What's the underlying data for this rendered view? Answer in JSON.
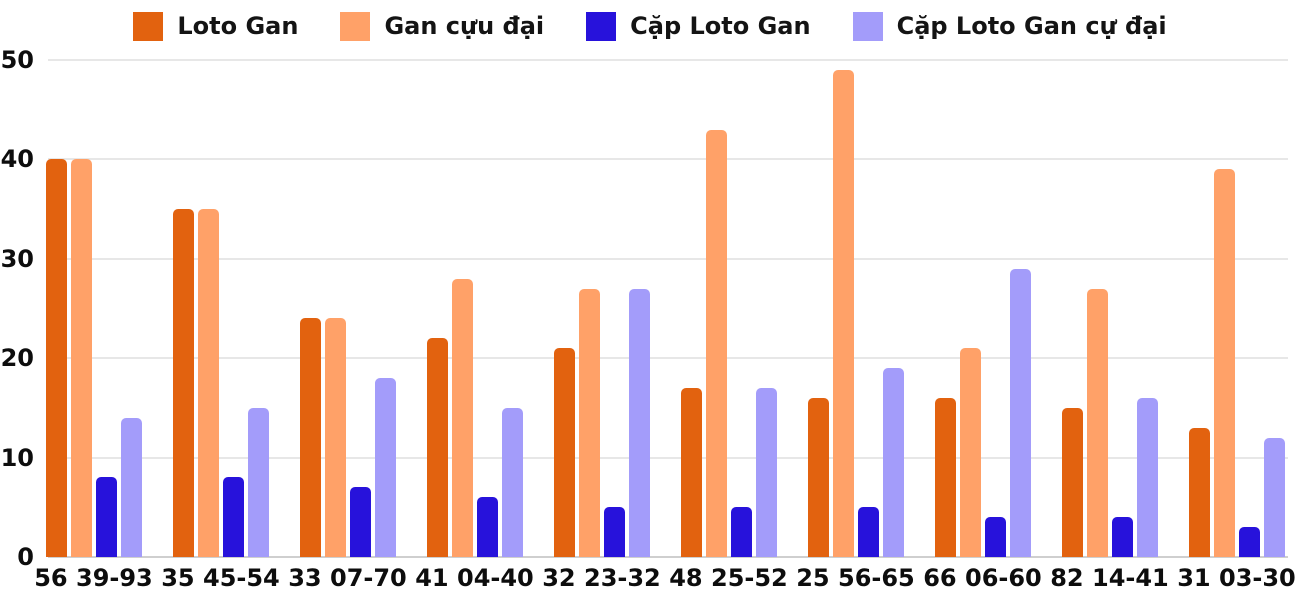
{
  "background": "#FFFFFF",
  "text_color": "#0D0D0D",
  "grid_color": "#E7E7E7",
  "chart_data": {
    "type": "bar",
    "title": "",
    "xlabel": "",
    "ylabel": "",
    "grid": true,
    "legend_position": "top",
    "ylim": [
      0,
      50
    ],
    "yticks": [
      0,
      10,
      20,
      30,
      40,
      50
    ],
    "categories": [
      "56 39-93",
      "35 45-54",
      "33 07-70",
      "41 04-40",
      "32 23-32",
      "48 25-52",
      "25 56-65",
      "66 06-60",
      "82 14-41",
      "31 03-30"
    ],
    "series": [
      {
        "name": "Loto Gan",
        "color": "#E2620F",
        "values": [
          40,
          35,
          24,
          22,
          21,
          17,
          16,
          16,
          15,
          13
        ]
      },
      {
        "name": "Gan cựu đại",
        "color": "#FFA168",
        "values": [
          40,
          35,
          24,
          28,
          27,
          43,
          49,
          21,
          27,
          39
        ]
      },
      {
        "name": "Cặp Loto Gan",
        "color": "#2712DB",
        "values": [
          8,
          8,
          7,
          6,
          5,
          5,
          5,
          4,
          4,
          3
        ]
      },
      {
        "name": "Cặp Loto Gan cự đại",
        "color": "#A39CFA",
        "values": [
          14,
          15,
          18,
          15,
          27,
          17,
          19,
          29,
          16,
          12
        ]
      }
    ]
  }
}
